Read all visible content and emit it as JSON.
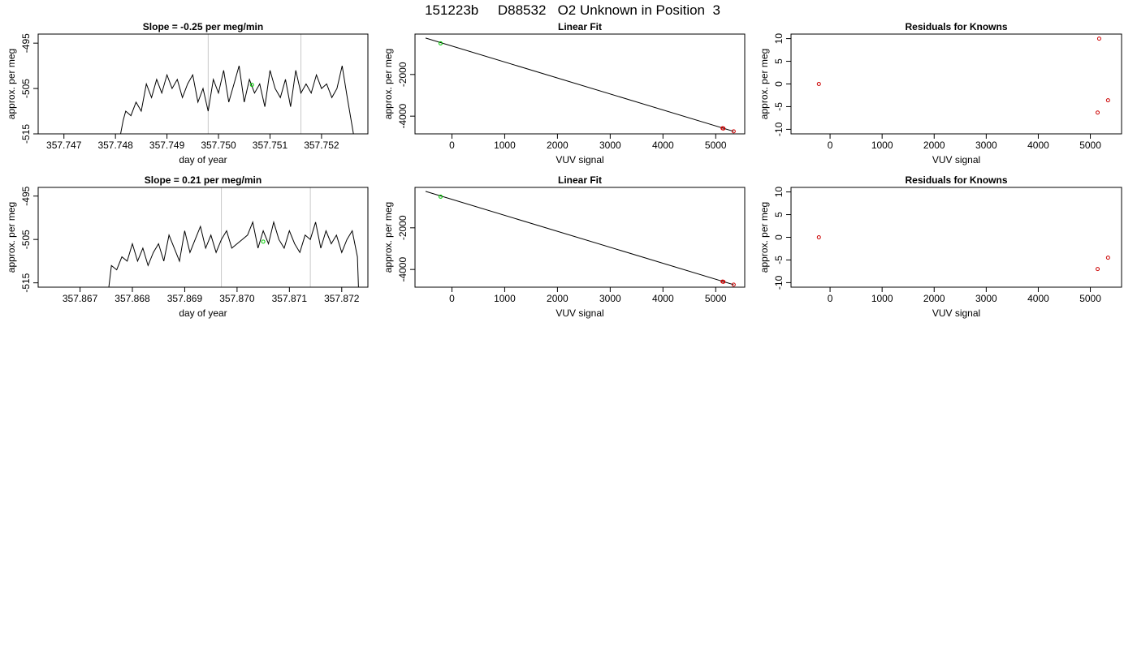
{
  "figure": {
    "title": "151223b     D88532   O2 Unknown in Position  3"
  },
  "chart_data": [
    {
      "type": "line",
      "title": "Slope =  -0.25  per meg/min",
      "xlabel": "day of year",
      "ylabel": "approx. per meg",
      "xlim": [
        357.7465,
        357.7529
      ],
      "ylim": [
        -515,
        -493
      ],
      "xticks": [
        357.747,
        357.748,
        357.749,
        357.75,
        357.751,
        357.752
      ],
      "xtick_labels": [
        "357.747",
        "357.748",
        "357.749",
        "357.750",
        "357.751",
        "357.752"
      ],
      "yticks": [
        -495,
        -505,
        -515
      ],
      "ytick_labels": [
        "-495",
        "-505",
        "-515"
      ],
      "vlines": [
        357.7498,
        357.7516
      ],
      "colors": {
        "line": "#000000",
        "marker": "#00cc00",
        "vline": "#c8c8c8"
      },
      "marker": {
        "x": 357.75065,
        "y": -504.2
      },
      "series": [
        {
          "x": [
            357.7481,
            357.74815,
            357.7482,
            357.7483,
            357.7484,
            357.7485,
            357.7486,
            357.7487,
            357.7488,
            357.7489,
            357.749,
            357.7491,
            357.7492,
            357.7493,
            357.7494,
            357.7495,
            357.7496,
            357.7497,
            357.7498,
            357.7499,
            357.75,
            357.7501,
            357.7502,
            357.7503,
            357.7504,
            357.7505,
            357.7506,
            357.7507,
            357.7508,
            357.7509,
            357.751,
            357.7511,
            357.7512,
            357.7513,
            357.7514,
            357.7515,
            357.7516,
            357.7517,
            357.7518,
            357.7519,
            357.752,
            357.7521,
            357.7522,
            357.7523,
            357.7524,
            357.7525,
            357.75262
          ],
          "y": [
            -515,
            -512,
            -510,
            -511,
            -508,
            -510,
            -504,
            -507,
            -503,
            -506,
            -502,
            -505,
            -503,
            -507,
            -504,
            -502,
            -508,
            -505,
            -510,
            -503,
            -506,
            -501,
            -508,
            -504,
            -500,
            -508,
            -503,
            -506,
            -504,
            -509,
            -501,
            -505,
            -507,
            -503,
            -509,
            -501,
            -506,
            -504,
            -506,
            -502,
            -505,
            -504,
            -507,
            -505,
            -500,
            -507,
            -515
          ]
        }
      ]
    },
    {
      "type": "scatter",
      "title": "Linear Fit",
      "xlabel": "VUV signal",
      "ylabel": "approx. per meg",
      "xlim": [
        -700,
        5550
      ],
      "ylim": [
        -4850,
        -60
      ],
      "xticks": [
        0,
        1000,
        2000,
        3000,
        4000,
        5000
      ],
      "xtick_labels": [
        "0",
        "1000",
        "2000",
        "3000",
        "4000",
        "5000"
      ],
      "yticks": [
        -2000,
        -4000
      ],
      "ytick_labels": [
        "-2000",
        "-4000"
      ],
      "colors": {
        "fit": "#000000",
        "known": "#cc0000",
        "unknown": "#00cc00"
      },
      "fit_line": {
        "x": [
          -500,
          5340
        ],
        "y": [
          -250,
          -4730
        ]
      },
      "known_points": {
        "x": [
          5130,
          5145,
          5340
        ],
        "y": [
          -4580,
          -4590,
          -4730
        ]
      },
      "unknown_points": {
        "x": [
          -215
        ],
        "y": [
          -505
        ]
      }
    },
    {
      "type": "scatter",
      "title": "Residuals for Knowns",
      "xlabel": "VUV signal",
      "ylabel": "approx. per meg",
      "xlim": [
        -750,
        5600
      ],
      "ylim": [
        -11,
        11
      ],
      "xticks": [
        0,
        1000,
        2000,
        3000,
        4000,
        5000
      ],
      "xtick_labels": [
        "0",
        "1000",
        "2000",
        "3000",
        "4000",
        "5000"
      ],
      "yticks": [
        10,
        5,
        0,
        -5,
        -10
      ],
      "ytick_labels": [
        "10",
        "5",
        "0",
        "-5",
        "-10"
      ],
      "colors": {
        "points": "#cc0000"
      },
      "points": {
        "x": [
          -215,
          5170,
          5140,
          5340
        ],
        "y": [
          0,
          10,
          -6.3,
          -3.6
        ]
      }
    },
    {
      "type": "line",
      "title": "Slope =  0.21  per meg/min",
      "xlabel": "day of year",
      "ylabel": "approx. per meg",
      "xlim": [
        357.8662,
        357.8725
      ],
      "ylim": [
        -516,
        -493
      ],
      "xticks": [
        357.867,
        357.868,
        357.869,
        357.87,
        357.871,
        357.872
      ],
      "xtick_labels": [
        "357.867",
        "357.868",
        "357.869",
        "357.870",
        "357.871",
        "357.872"
      ],
      "yticks": [
        -495,
        -505,
        -515
      ],
      "ytick_labels": [
        "-495",
        "-505",
        "-515"
      ],
      "vlines": [
        357.8697,
        357.8714
      ],
      "colors": {
        "line": "#000000",
        "marker": "#00cc00",
        "vline": "#c8c8c8"
      },
      "marker": {
        "x": 357.8705,
        "y": -505.5
      },
      "series": [
        {
          "x": [
            357.86755,
            357.8676,
            357.8677,
            357.8678,
            357.8679,
            357.868,
            357.8681,
            357.8682,
            357.8683,
            357.8684,
            357.8685,
            357.8686,
            357.8687,
            357.8688,
            357.8689,
            357.869,
            357.8691,
            357.8692,
            357.8693,
            357.8694,
            357.8695,
            357.8696,
            357.8697,
            357.8698,
            357.8699,
            357.87,
            357.8701,
            357.8702,
            357.8703,
            357.8704,
            357.8705,
            357.8706,
            357.8707,
            357.8708,
            357.8709,
            357.871,
            357.8711,
            357.8712,
            357.8713,
            357.8714,
            357.8715,
            357.8716,
            357.8717,
            357.8718,
            357.8719,
            357.872,
            357.8721,
            357.8722,
            357.8723,
            357.87232
          ],
          "y": [
            -516,
            -511,
            -512,
            -509,
            -510,
            -506,
            -510,
            -507,
            -511,
            -508,
            -506,
            -510,
            -504,
            -507,
            -510,
            -503,
            -508,
            -505,
            -502,
            -507,
            -504,
            -508,
            -505,
            -503,
            -507,
            -506,
            -505,
            -504,
            -501,
            -507,
            -503,
            -506,
            -501,
            -505,
            -507,
            -503,
            -506,
            -508,
            -504,
            -505,
            -501,
            -507,
            -503,
            -506,
            -504,
            -508,
            -505,
            -503,
            -509,
            -516
          ]
        }
      ]
    },
    {
      "type": "scatter",
      "title": "Linear Fit",
      "xlabel": "VUV signal",
      "ylabel": "approx. per meg",
      "xlim": [
        -700,
        5550
      ],
      "ylim": [
        -4850,
        -60
      ],
      "xticks": [
        0,
        1000,
        2000,
        3000,
        4000,
        5000
      ],
      "xtick_labels": [
        "0",
        "1000",
        "2000",
        "3000",
        "4000",
        "5000"
      ],
      "yticks": [
        -2000,
        -4000
      ],
      "ytick_labels": [
        "-2000",
        "-4000"
      ],
      "colors": {
        "fit": "#000000",
        "known": "#cc0000",
        "unknown": "#00cc00"
      },
      "fit_line": {
        "x": [
          -500,
          5340
        ],
        "y": [
          -250,
          -4730
        ]
      },
      "known_points": {
        "x": [
          5130,
          5145,
          5340
        ],
        "y": [
          -4580,
          -4590,
          -4730
        ]
      },
      "unknown_points": {
        "x": [
          -215
        ],
        "y": [
          -505
        ]
      }
    },
    {
      "type": "scatter",
      "title": "Residuals for Knowns",
      "xlabel": "VUV signal",
      "ylabel": "approx. per meg",
      "xlim": [
        -750,
        5600
      ],
      "ylim": [
        -11,
        11
      ],
      "xticks": [
        0,
        1000,
        2000,
        3000,
        4000,
        5000
      ],
      "xtick_labels": [
        "0",
        "1000",
        "2000",
        "3000",
        "4000",
        "5000"
      ],
      "yticks": [
        10,
        5,
        0,
        -5,
        -10
      ],
      "ytick_labels": [
        "10",
        "5",
        "0",
        "-5",
        "-10"
      ],
      "colors": {
        "points": "#cc0000"
      },
      "points": {
        "x": [
          -215,
          5140,
          5340
        ],
        "y": [
          0,
          -7,
          -4.5
        ]
      }
    }
  ]
}
